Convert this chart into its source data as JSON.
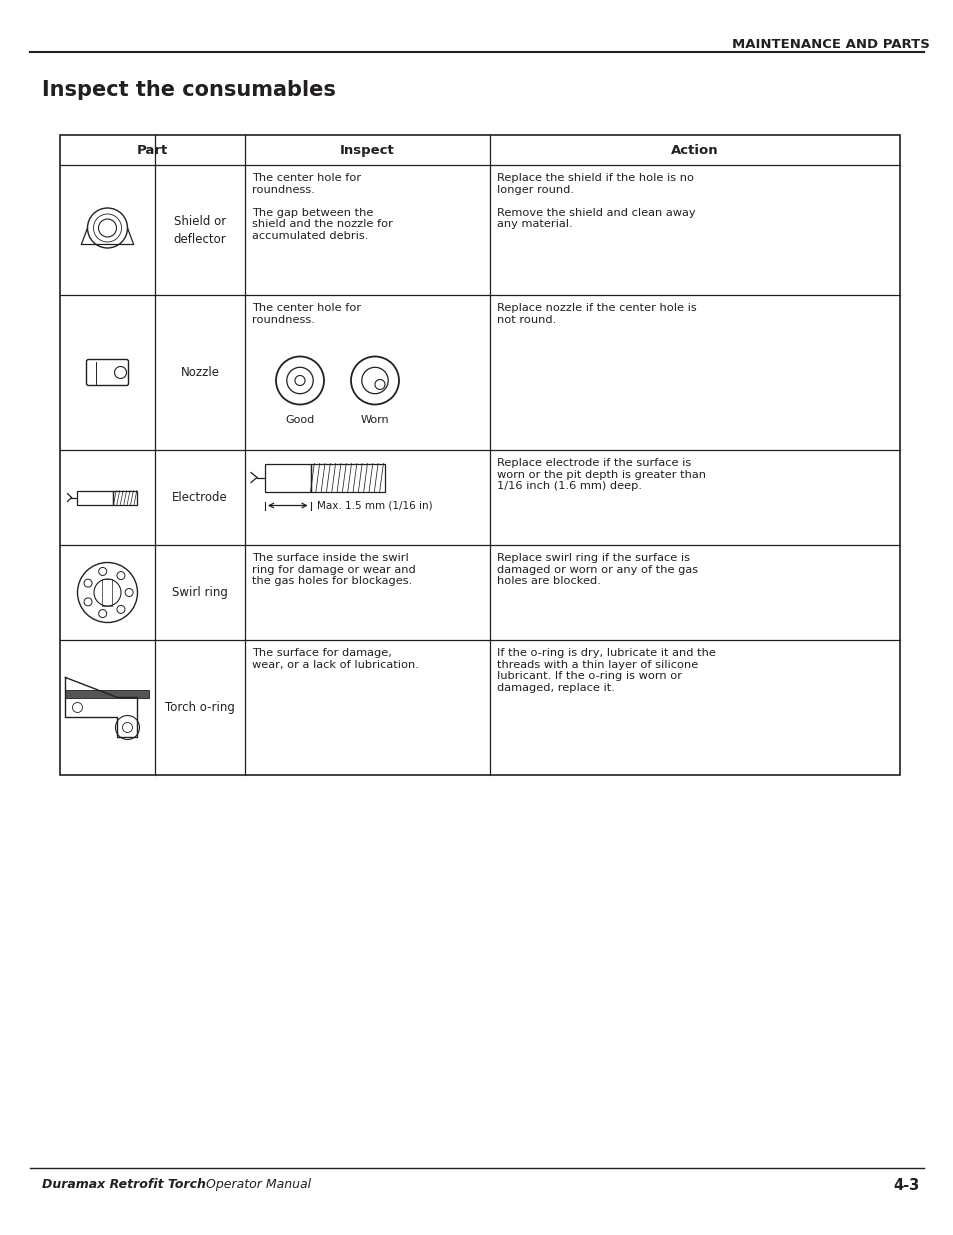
{
  "page_title": "MAINTENANCE AND PARTS",
  "section_title": "Inspect the consumables",
  "footer_left_bold": "Duramax Retrofit Torch",
  "footer_left_regular": " Operator Manual",
  "footer_right": "4-3",
  "rows": [
    {
      "part_label": "Shield or\ndeflector",
      "inspect_text": "The center hole for\nroundness.\n\nThe gap between the\nshield and the nozzle for\naccumulated debris.",
      "action_text": "Replace the shield if the hole is no\nlonger round.\n\nRemove the shield and clean away\nany material."
    },
    {
      "part_label": "Nozzle",
      "inspect_text": "The center hole for\nroundness.",
      "action_text": "Replace nozzle if the center hole is\nnot round."
    },
    {
      "part_label": "Electrode",
      "inspect_text": "",
      "action_text": "Replace electrode if the surface is\nworn or the pit depth is greater than\n1/16 inch (1.6 mm) deep."
    },
    {
      "part_label": "Swirl ring",
      "inspect_text": "The surface inside the swirl\nring for damage or wear and\nthe gas holes for blockages.",
      "action_text": "Replace swirl ring if the surface is\ndamaged or worn or any of the gas\nholes are blocked."
    },
    {
      "part_label": "Torch o-ring",
      "inspect_text": "The surface for damage,\nwear, or a lack of lubrication.",
      "action_text": "If the o-ring is dry, lubricate it and the\nthreads with a thin layer of silicone\nlubricant. If the o-ring is worn or\ndamaged, replace it."
    }
  ],
  "col_headers": [
    "Part",
    "Inspect",
    "Action"
  ],
  "bg": "#ffffff",
  "tc": "#231f20",
  "lc": "#231f20"
}
